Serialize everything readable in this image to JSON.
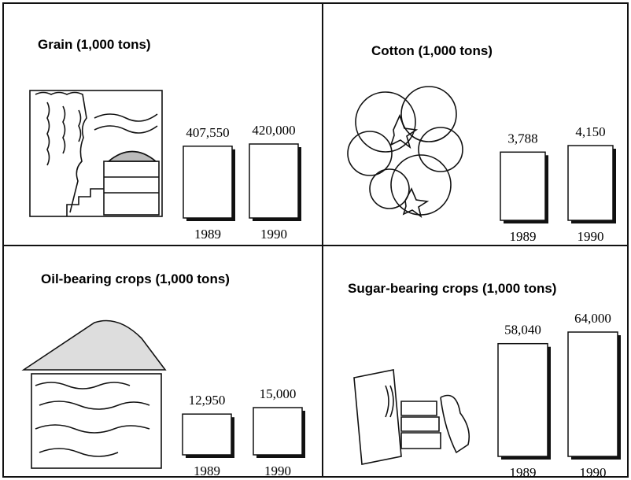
{
  "chart_data": [
    {
      "type": "bar",
      "title": "Grain (1,000 tons)",
      "categories": [
        "1989",
        "1990"
      ],
      "values": [
        407550,
        420000
      ],
      "value_labels": [
        "407,550",
        "420,000"
      ],
      "color": "#ffffff"
    },
    {
      "type": "bar",
      "title": "Cotton (1,000 tons)",
      "categories": [
        "1989",
        "1990"
      ],
      "values": [
        3788,
        4150
      ],
      "value_labels": [
        "3,788",
        "4,150"
      ],
      "color": "#ffffff"
    },
    {
      "type": "bar",
      "title": "Oil-bearing crops (1,000 tons)",
      "categories": [
        "1989",
        "1990"
      ],
      "values": [
        12950,
        15000
      ],
      "value_labels": [
        "12,950",
        "15,000"
      ],
      "color": "#ffffff"
    },
    {
      "type": "bar",
      "title": "Sugar-bearing crops (1,000 tons)",
      "categories": [
        "1989",
        "1990"
      ],
      "values": [
        58040,
        64000
      ],
      "value_labels": [
        "58,040",
        "64,000"
      ],
      "color": "#ffffff"
    }
  ]
}
